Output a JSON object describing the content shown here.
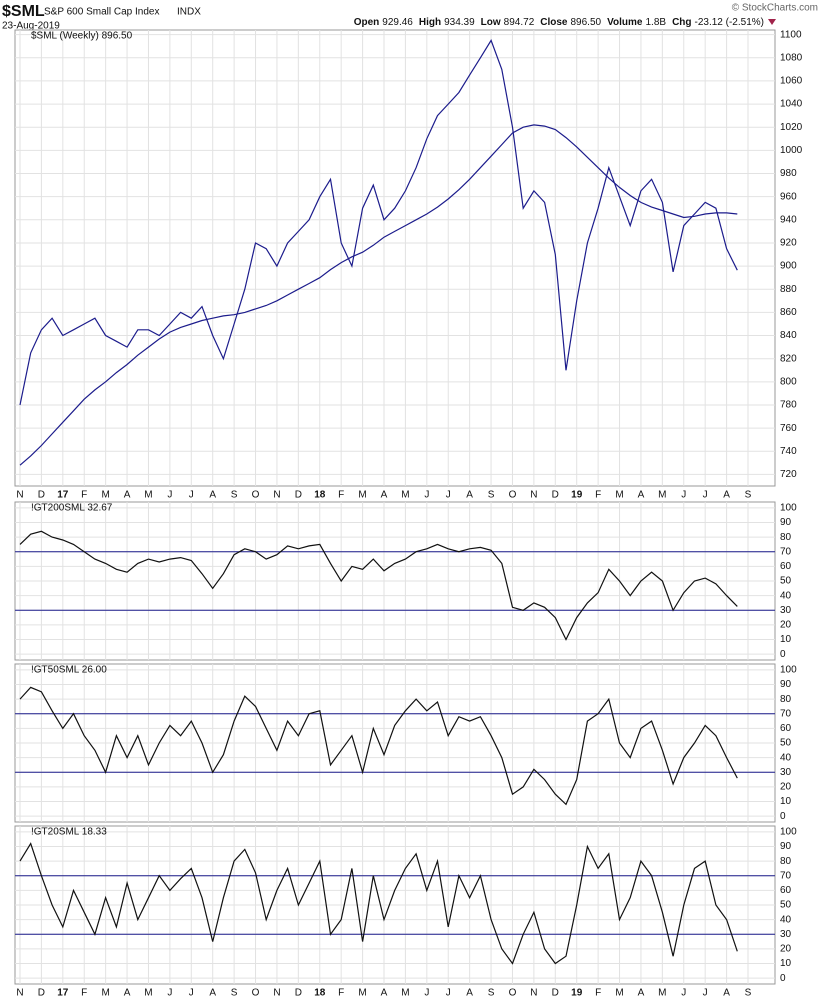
{
  "header": {
    "symbol": "$SML",
    "name": "S&P 600 Small Cap Index",
    "exchange": "INDX",
    "date": "23-Aug-2019",
    "copyright": "© StockCharts.com",
    "quote": [
      {
        "label": "Open",
        "value": "929.46"
      },
      {
        "label": "High",
        "value": "934.39"
      },
      {
        "label": "Low",
        "value": "894.72"
      },
      {
        "label": "Close",
        "value": "896.50"
      },
      {
        "label": "Volume",
        "value": "1.8B"
      },
      {
        "label": "Chg",
        "value": "-23.12 (-2.51%)"
      }
    ]
  },
  "chart_data": [
    {
      "type": "line",
      "categories": [
        "N",
        null,
        "D",
        null,
        "17",
        null,
        "F",
        null,
        "M",
        null,
        "A",
        null,
        "M",
        null,
        "J",
        null,
        "J",
        null,
        "A",
        null,
        "S",
        null,
        "O",
        null,
        "N",
        null,
        "D",
        null,
        "18",
        null,
        "F",
        null,
        "M",
        null,
        "A",
        null,
        "M",
        null,
        "J",
        null,
        "J",
        null,
        "A",
        null,
        "S",
        null,
        "O",
        null,
        "N",
        null,
        "D",
        null,
        "19",
        null,
        "F",
        null,
        "M",
        null,
        "A",
        null,
        "M",
        null,
        "J",
        null,
        "J",
        null,
        "A",
        null,
        "S"
      ],
      "ylim": [
        710,
        1104
      ],
      "yticks": [
        720,
        740,
        760,
        780,
        800,
        820,
        840,
        860,
        880,
        900,
        920,
        940,
        960,
        980,
        1000,
        1020,
        1040,
        1060,
        1080,
        1100
      ],
      "grid": true,
      "series": [
        {
          "name": "$SML (Weekly) 896.50",
          "color": "#1c1c8c",
          "values": [
            780,
            825,
            845,
            855,
            840,
            845,
            850,
            855,
            840,
            835,
            830,
            845,
            845,
            840,
            850,
            860,
            855,
            865,
            840,
            820,
            850,
            880,
            920,
            915,
            900,
            920,
            930,
            940,
            960,
            975,
            920,
            900,
            950,
            970,
            940,
            950,
            965,
            985,
            1010,
            1030,
            1040,
            1050,
            1065,
            1080,
            1095,
            1070,
            1020,
            950,
            965,
            955,
            910,
            810,
            870,
            920,
            950,
            985,
            960,
            935,
            965,
            975,
            955,
            895,
            935,
            945,
            955,
            950,
            915,
            896.5,
            null
          ]
        },
        {
          "color": "#1c1c8c",
          "values": [
            728,
            736,
            745,
            755,
            765,
            775,
            785,
            793,
            800,
            808,
            815,
            823,
            830,
            837,
            843,
            847,
            850,
            853,
            855,
            857,
            858,
            860,
            863,
            866,
            870,
            875,
            880,
            885,
            890,
            897,
            903,
            908,
            912,
            918,
            925,
            930,
            935,
            940,
            945,
            951,
            958,
            966,
            975,
            985,
            995,
            1005,
            1015,
            1020,
            1022,
            1021,
            1018,
            1011,
            1003,
            994,
            985,
            976,
            968,
            961,
            955,
            951,
            948,
            945,
            942,
            943,
            945,
            946,
            946,
            945,
            null
          ]
        }
      ]
    },
    {
      "type": "line",
      "ylim": [
        -4,
        104
      ],
      "yticks": [
        0,
        10,
        20,
        30,
        40,
        50,
        60,
        70,
        80,
        90,
        100
      ],
      "grid": true,
      "hlines": [
        70,
        30
      ],
      "hline_color": "#1c1c8c",
      "series": [
        {
          "name": "!GT200SML 32.67",
          "color": "#111111",
          "values": [
            75,
            82,
            84,
            80,
            78,
            75,
            70,
            65,
            62,
            58,
            56,
            62,
            65,
            63,
            65,
            66,
            64,
            55,
            45,
            55,
            68,
            72,
            70,
            65,
            68,
            74,
            72,
            74,
            75,
            62,
            50,
            60,
            58,
            65,
            57,
            62,
            65,
            70,
            72,
            75,
            72,
            70,
            72,
            73,
            71,
            62,
            32,
            30,
            35,
            32,
            25,
            10,
            25,
            35,
            42,
            58,
            50,
            40,
            50,
            56,
            50,
            30,
            42,
            50,
            52,
            48,
            40,
            32.67,
            null
          ]
        }
      ]
    },
    {
      "type": "line",
      "ylim": [
        -4,
        104
      ],
      "yticks": [
        0,
        10,
        20,
        30,
        40,
        50,
        60,
        70,
        80,
        90,
        100
      ],
      "grid": true,
      "hlines": [
        70,
        30
      ],
      "hline_color": "#1c1c8c",
      "series": [
        {
          "name": "!GT50SML 26.00",
          "color": "#111111",
          "values": [
            80,
            88,
            85,
            72,
            60,
            70,
            55,
            45,
            30,
            55,
            40,
            55,
            35,
            50,
            62,
            55,
            65,
            50,
            30,
            42,
            65,
            82,
            75,
            60,
            45,
            65,
            55,
            70,
            72,
            35,
            45,
            55,
            30,
            60,
            42,
            62,
            72,
            80,
            72,
            78,
            55,
            68,
            65,
            68,
            55,
            40,
            15,
            20,
            32,
            25,
            15,
            8,
            25,
            65,
            70,
            80,
            50,
            40,
            60,
            65,
            45,
            22,
            40,
            50,
            62,
            55,
            40,
            26,
            null
          ]
        }
      ]
    },
    {
      "type": "line",
      "ylim": [
        -4,
        104
      ],
      "yticks": [
        0,
        10,
        20,
        30,
        40,
        50,
        60,
        70,
        80,
        90,
        100
      ],
      "grid": true,
      "hlines": [
        70,
        30
      ],
      "hline_color": "#1c1c8c",
      "categories": [
        "N",
        null,
        "D",
        null,
        "17",
        null,
        "F",
        null,
        "M",
        null,
        "A",
        null,
        "M",
        null,
        "J",
        null,
        "J",
        null,
        "A",
        null,
        "S",
        null,
        "O",
        null,
        "N",
        null,
        "D",
        null,
        "18",
        null,
        "F",
        null,
        "M",
        null,
        "A",
        null,
        "M",
        null,
        "J",
        null,
        "J",
        null,
        "A",
        null,
        "S",
        null,
        "O",
        null,
        "N",
        null,
        "D",
        null,
        "19",
        null,
        "F",
        null,
        "M",
        null,
        "A",
        null,
        "M",
        null,
        "J",
        null,
        "J",
        null,
        "A",
        null,
        "S"
      ],
      "series": [
        {
          "name": "!GT20SML 18.33",
          "color": "#111111",
          "values": [
            80,
            92,
            70,
            50,
            35,
            60,
            45,
            30,
            55,
            35,
            65,
            40,
            55,
            70,
            60,
            68,
            75,
            55,
            25,
            55,
            80,
            88,
            72,
            40,
            60,
            75,
            50,
            65,
            80,
            30,
            40,
            75,
            25,
            70,
            40,
            60,
            75,
            85,
            60,
            80,
            35,
            70,
            55,
            70,
            40,
            20,
            10,
            30,
            45,
            20,
            10,
            15,
            50,
            90,
            75,
            85,
            40,
            55,
            80,
            70,
            45,
            15,
            50,
            75,
            80,
            50,
            40,
            18.33,
            null
          ]
        }
      ]
    }
  ]
}
